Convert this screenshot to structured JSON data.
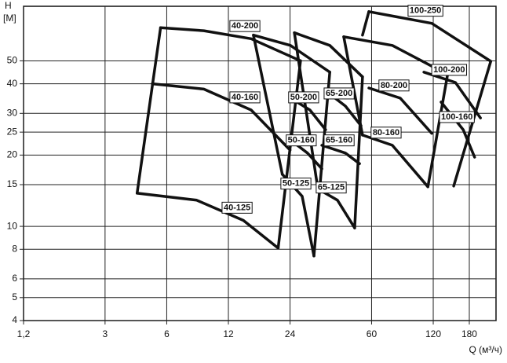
{
  "chart_data": {
    "type": "line",
    "y_title": "H",
    "y_unit": "[M]",
    "x_title": "Q (м³/ч)",
    "xscale": "log",
    "yscale": "log",
    "grid": true,
    "xlim": [
      1.2,
      243
    ],
    "ylim": [
      4,
      85
    ],
    "xticks": [
      {
        "value": 1.2,
        "label": "1,2"
      },
      3,
      6,
      12,
      24,
      60,
      120,
      180
    ],
    "yticks": [
      4,
      5,
      6,
      8,
      10,
      15,
      20,
      25,
      30,
      40,
      50
    ],
    "series": [
      {
        "name": "40-200",
        "color": "#111111",
        "x": [
          5.6,
          9.1,
          15.5,
          27
        ],
        "values": [
          69,
          67,
          62,
          50
        ]
      },
      {
        "name": "40-160",
        "color": "#111111",
        "x": [
          5.1,
          9.1,
          15.5,
          24
        ],
        "values": [
          40,
          38,
          31,
          21
        ]
      },
      {
        "name": "40-125",
        "color": "#111111",
        "x": [
          4.3,
          8.4,
          14.2,
          21
        ],
        "values": [
          13.8,
          12.9,
          10.6,
          8.1
        ]
      },
      {
        "color": "#111111",
        "x": [
          5.6,
          4.3
        ],
        "values": [
          69,
          13.8
        ]
      },
      {
        "color": "#111111",
        "x": [
          27,
          21
        ],
        "values": [
          50,
          8.1
        ]
      },
      {
        "color": "#111111",
        "x": [
          15.9,
          24.1,
          37.5
        ],
        "values": [
          64.2,
          58.1,
          44.8
        ]
      },
      {
        "name": "50-200",
        "color": "#111111",
        "x": [
          25.2,
          30,
          35.8
        ],
        "values": [
          34,
          31,
          25.6
        ]
      },
      {
        "name": "50-160",
        "color": "#111111",
        "x": [
          24.5,
          29.2,
          34.3
        ],
        "values": [
          22.9,
          20.4,
          17.5
        ]
      },
      {
        "name": "50-125",
        "color": "#111111",
        "x": [
          22,
          27.5,
          31.4
        ],
        "values": [
          16.6,
          13.4,
          7.5
        ]
      },
      {
        "color": "#111111",
        "x": [
          15.9,
          22
        ],
        "values": [
          64.2,
          16.6
        ]
      },
      {
        "color": "#111111",
        "x": [
          37.5,
          31.4
        ],
        "values": [
          44.8,
          7.5
        ]
      },
      {
        "color": "#111111",
        "x": [
          25.2,
          37.5,
          54.2
        ],
        "values": [
          65.7,
          58.1,
          42.8
        ]
      },
      {
        "name": "65-200",
        "color": "#111111",
        "x": [
          37.5,
          44.7,
          53.3
        ],
        "values": [
          36.2,
          32.2,
          26.6
        ]
      },
      {
        "name": "65-160",
        "color": "#111111",
        "x": [
          34.3,
          44.7,
          52.4
        ],
        "values": [
          22,
          20.4,
          18.4
        ]
      },
      {
        "name": "65-125",
        "color": "#111111",
        "x": [
          32.8,
          40.9,
          49.6
        ],
        "values": [
          14.4,
          12.9,
          9.85
        ]
      },
      {
        "color": "#111111",
        "x": [
          25.2,
          32.8
        ],
        "values": [
          65.7,
          14.4
        ]
      },
      {
        "color": "#111111",
        "x": [
          54.2,
          49.6
        ],
        "values": [
          42.8,
          9.85
        ]
      },
      {
        "color": "#111111",
        "x": [
          43.9,
          75.8,
          141
        ],
        "values": [
          63.2,
          58.1,
          43.8
        ]
      },
      {
        "name": "80-200",
        "color": "#111111",
        "x": [
          58.2,
          82.8,
          118
        ],
        "values": [
          38.4,
          34.8,
          24.7
        ]
      },
      {
        "name": "80-160",
        "color": "#111111",
        "x": [
          54.2,
          75.8,
          113
        ],
        "values": [
          24.3,
          22,
          14.7
        ]
      },
      {
        "color": "#111111",
        "x": [
          43.9,
          54.2
        ],
        "values": [
          63.2,
          24.3
        ]
      },
      {
        "color": "#111111",
        "x": [
          141,
          113
        ],
        "values": [
          43.8,
          14.7
        ]
      },
      {
        "name": "100-250",
        "color": "#111111",
        "x": [
          58.2,
          118,
          229
        ],
        "values": [
          80.7,
          72,
          49.8
        ]
      },
      {
        "name": "100-200",
        "color": "#111111",
        "x": [
          108,
          154,
          204
        ],
        "values": [
          44.8,
          40.5,
          28.7
        ]
      },
      {
        "name": "100-160",
        "color": "#111111",
        "x": [
          131,
          168,
          191
        ],
        "values": [
          33.5,
          25.6,
          19.6
        ]
      },
      {
        "color": "#111111",
        "x": [
          58.2,
          54.2
        ],
        "values": [
          80.7,
          64.2
        ]
      },
      {
        "color": "#111111",
        "x": [
          229,
          151
        ],
        "values": [
          49.8,
          14.8
        ]
      }
    ]
  }
}
